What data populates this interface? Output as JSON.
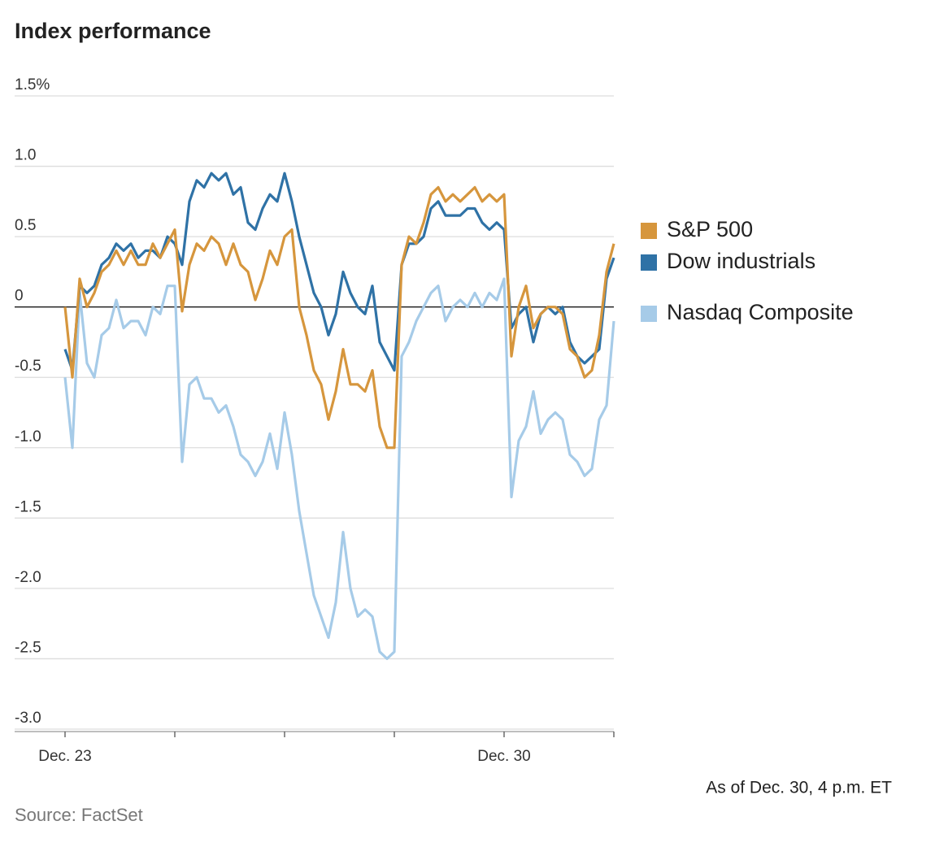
{
  "chart_data": {
    "type": "line",
    "title": "Index performance",
    "note": "As of Dec. 30, 4 p.m. ET",
    "source": "Source: FactSet",
    "categories": [
      "Dec. 23",
      null,
      null,
      null,
      null,
      null,
      null,
      null,
      null,
      null,
      null,
      null,
      null,
      null,
      null,
      null,
      null,
      null,
      null,
      null,
      null,
      null,
      null,
      null,
      null,
      null,
      null,
      null,
      null,
      null,
      null,
      null,
      null,
      null,
      null,
      null,
      null,
      null,
      null,
      null,
      null,
      null,
      null,
      null,
      null,
      null,
      null,
      null,
      null,
      null,
      null,
      null,
      null,
      null,
      null,
      null,
      null,
      null,
      null,
      null,
      "Dec. 30",
      null,
      null,
      null,
      null,
      null,
      null,
      null,
      null,
      null,
      null,
      null,
      null,
      null,
      null,
      null
    ],
    "series": [
      {
        "name": "S&P 500",
        "color": "#d6963d",
        "values": [
          0.0,
          -0.5,
          0.2,
          0.0,
          0.1,
          0.25,
          0.3,
          0.4,
          0.3,
          0.4,
          0.3,
          0.3,
          0.45,
          0.35,
          0.45,
          0.55,
          -0.03,
          0.3,
          0.45,
          0.4,
          0.5,
          0.45,
          0.3,
          0.45,
          0.3,
          0.25,
          0.05,
          0.2,
          0.4,
          0.3,
          0.5,
          0.55,
          0.0,
          -0.2,
          -0.45,
          -0.55,
          -0.8,
          -0.6,
          -0.3,
          -0.55,
          -0.55,
          -0.6,
          -0.45,
          -0.85,
          -1.0,
          -1.0,
          0.3,
          0.5,
          0.45,
          0.6,
          0.8,
          0.85,
          0.75,
          0.8,
          0.75,
          0.8,
          0.85,
          0.75,
          0.8,
          0.75,
          0.8,
          -0.35,
          0.0,
          0.15,
          -0.15,
          -0.05,
          0.0,
          0.0,
          -0.05,
          -0.3,
          -0.35,
          -0.5,
          -0.45,
          -0.2,
          0.25,
          0.45
        ]
      },
      {
        "name": "Dow industrials",
        "color": "#2f72a6",
        "values": [
          -0.3,
          -0.45,
          0.15,
          0.1,
          0.15,
          0.3,
          0.35,
          0.45,
          0.4,
          0.45,
          0.35,
          0.4,
          0.4,
          0.35,
          0.5,
          0.45,
          0.3,
          0.75,
          0.9,
          0.85,
          0.95,
          0.9,
          0.95,
          0.8,
          0.85,
          0.6,
          0.55,
          0.7,
          0.8,
          0.75,
          0.95,
          0.75,
          0.5,
          0.3,
          0.1,
          0.0,
          -0.2,
          -0.05,
          0.25,
          0.1,
          0.0,
          -0.05,
          0.15,
          -0.25,
          -0.35,
          -0.45,
          0.3,
          0.45,
          0.45,
          0.5,
          0.7,
          0.75,
          0.65,
          0.65,
          0.65,
          0.7,
          0.7,
          0.6,
          0.55,
          0.6,
          0.55,
          -0.15,
          -0.05,
          0.0,
          -0.25,
          -0.05,
          0.0,
          -0.05,
          0.0,
          -0.25,
          -0.35,
          -0.4,
          -0.35,
          -0.3,
          0.2,
          0.35
        ]
      },
      {
        "name": "Nasdaq Composite",
        "color": "#a6cbe8",
        "values": [
          -0.5,
          -1.0,
          0.1,
          -0.4,
          -0.5,
          -0.2,
          -0.15,
          0.05,
          -0.15,
          -0.1,
          -0.1,
          -0.2,
          0.0,
          -0.05,
          0.15,
          0.15,
          -1.1,
          -0.55,
          -0.5,
          -0.65,
          -0.65,
          -0.75,
          -0.7,
          -0.85,
          -1.05,
          -1.1,
          -1.2,
          -1.1,
          -0.9,
          -1.15,
          -0.75,
          -1.05,
          -1.45,
          -1.75,
          -2.05,
          -2.2,
          -2.35,
          -2.1,
          -1.6,
          -2.0,
          -2.2,
          -2.15,
          -2.2,
          -2.45,
          -2.5,
          -2.45,
          -0.35,
          -0.25,
          -0.1,
          0.0,
          0.1,
          0.15,
          -0.1,
          0.0,
          0.05,
          0.0,
          0.1,
          0.0,
          0.1,
          0.05,
          0.2,
          -1.35,
          -0.95,
          -0.85,
          -0.6,
          -0.9,
          -0.8,
          -0.75,
          -0.8,
          -1.05,
          -1.1,
          -1.2,
          -1.15,
          -0.8,
          -0.7,
          -0.1
        ]
      }
    ],
    "ylim": [
      -3,
      1.5
    ],
    "yticks": [
      {
        "value": 1.5,
        "label": "1.5%"
      },
      {
        "value": 1,
        "label": "1.0"
      },
      0.5,
      0,
      -0.5,
      {
        "value": -1,
        "label": "-1.0"
      },
      -1.5,
      {
        "value": -2,
        "label": "-2.0"
      },
      -2.5,
      {
        "value": -3,
        "label": "-3.0"
      }
    ],
    "grid": true,
    "legend": "right"
  }
}
